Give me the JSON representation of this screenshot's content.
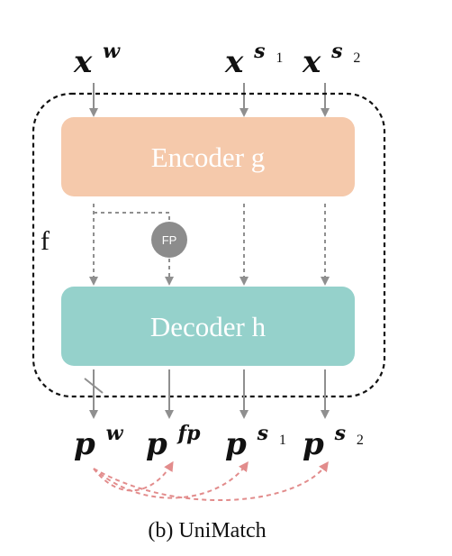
{
  "inputs": {
    "xw": {
      "base": "x",
      "sup": "w"
    },
    "xs1": {
      "base": "x",
      "sup": "s",
      "supsub": "1"
    },
    "xs2": {
      "base": "x",
      "sup": "s",
      "supsub": "2"
    }
  },
  "outputs": {
    "pw": {
      "base": "p",
      "sup": "w"
    },
    "pfp": {
      "base": "p",
      "sup": "fp"
    },
    "ps1": {
      "base": "p",
      "sup": "s",
      "supsub": "1"
    },
    "ps2": {
      "base": "p",
      "sup": "s",
      "supsub": "2"
    }
  },
  "encoder": {
    "label": "Encoder g",
    "color": "#f5c9ab"
  },
  "decoder": {
    "label": "Decoder h",
    "color": "#95d1cb"
  },
  "fp": {
    "label": "FP",
    "color": "#8c8c8c"
  },
  "container_label": "f",
  "arrow_color": "#8f8f8f",
  "consistency_arrow_color": "#e28c8c",
  "caption": "(b) UniMatch"
}
